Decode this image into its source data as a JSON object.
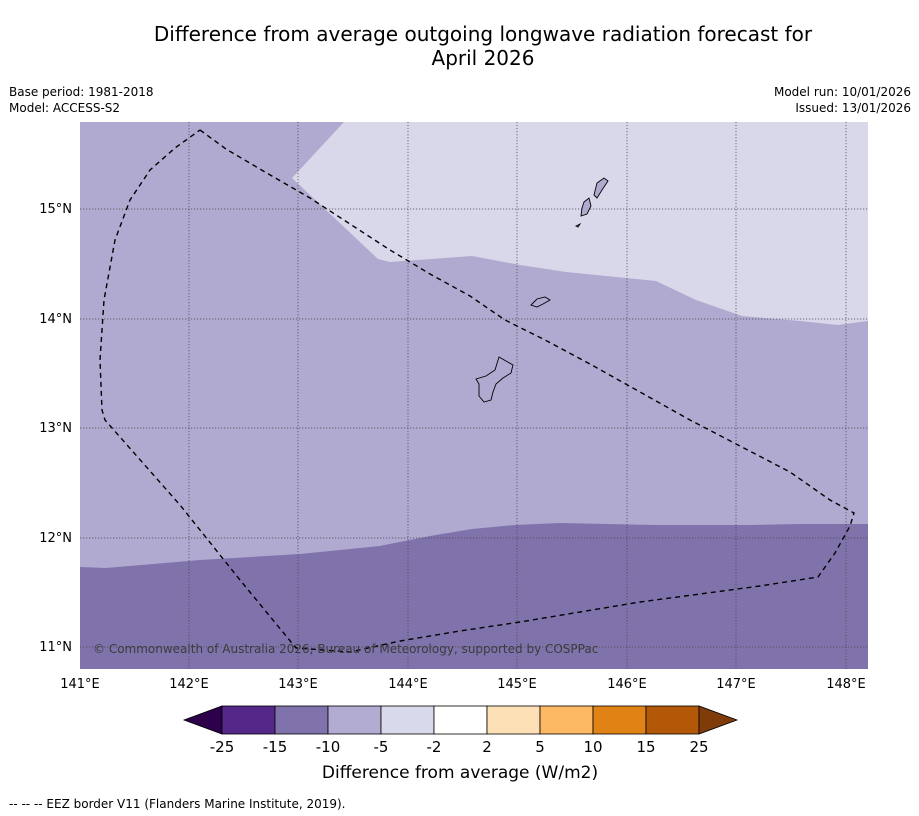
{
  "title": {
    "line1": "Difference from average outgoing longwave radiation forecast for",
    "line2": "April 2026"
  },
  "meta_left": {
    "base_period": "Base period: 1981-2018",
    "model": "Model: ACCESS-S2"
  },
  "meta_right": {
    "model_run": "Model run: 10/01/2026",
    "issued": "Issued: 13/01/2026"
  },
  "map": {
    "lat_labels": [
      "15°N",
      "14°N",
      "13°N",
      "12°N",
      "11°N"
    ],
    "lon_labels": [
      "141°E",
      "142°E",
      "143°E",
      "144°E",
      "145°E",
      "146°E",
      "147°E",
      "148°E"
    ],
    "copyright": "© Commonwealth of Australia 2026, Bureau of Meteorology, supported by COSPPac",
    "colors": {
      "band_-10_-5": "#b0a9d0",
      "band_-5_-2": "#d8d8ea",
      "band_-15_-10": "#8073ac"
    }
  },
  "colorbar": {
    "ticks": [
      "-25",
      "-15",
      "-10",
      "-5",
      "-2",
      "2",
      "5",
      "10",
      "15",
      "25"
    ],
    "colors": [
      "#2d004b",
      "#542788",
      "#8073ac",
      "#b2abd2",
      "#d8daeb",
      "#ffffff",
      "#fee0b6",
      "#fdb863",
      "#e08214",
      "#b35806",
      "#7f3b08"
    ],
    "label": "Difference from average (W/m2)"
  },
  "footnote": "--  --  -- EEZ border V11 (Flanders Marine Institute, 2019)."
}
